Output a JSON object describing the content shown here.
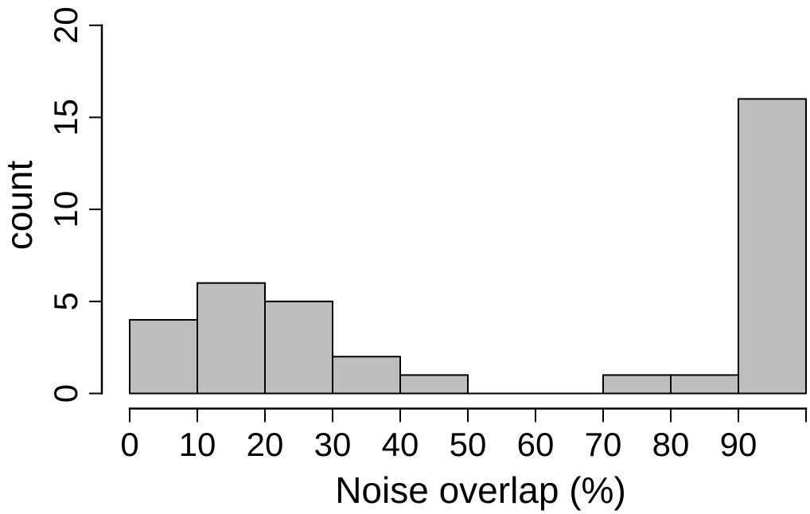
{
  "figure": {
    "background": "#FFFFFF"
  },
  "chart_data": {
    "type": "bar",
    "subtype": "histogram",
    "title": "",
    "xlabel": "Noise overlap (%)",
    "ylabel": "count",
    "bin_edges": [
      0,
      10,
      20,
      30,
      40,
      50,
      60,
      70,
      80,
      90,
      100
    ],
    "counts": [
      4,
      6,
      5,
      2,
      1,
      0,
      0,
      1,
      1,
      16
    ],
    "categories": [
      "0-10",
      "10-20",
      "20-30",
      "30-40",
      "40-50",
      "50-60",
      "60-70",
      "70-80",
      "80-90",
      "90-100"
    ],
    "xlim": [
      0,
      100
    ],
    "ylim": [
      0,
      20
    ],
    "x_ticks": [
      {
        "value": 0,
        "label": "0"
      },
      {
        "value": 10,
        "label": "10"
      },
      {
        "value": 20,
        "label": "20"
      },
      {
        "value": 30,
        "label": "30"
      },
      {
        "value": 40,
        "label": "40"
      },
      {
        "value": 50,
        "label": "50"
      },
      {
        "value": 60,
        "label": "60"
      },
      {
        "value": 70,
        "label": "70"
      },
      {
        "value": 80,
        "label": "80"
      },
      {
        "value": 90,
        "label": "90"
      },
      {
        "value": 100,
        "label": ""
      }
    ],
    "y_ticks": [
      {
        "value": 0,
        "label": "0"
      },
      {
        "value": 5,
        "label": "5"
      },
      {
        "value": 10,
        "label": "10"
      },
      {
        "value": 15,
        "label": "15"
      },
      {
        "value": 20,
        "label": "20"
      }
    ],
    "bar_fill": "#BEBEBE",
    "bar_border": "#000000",
    "axis_color": "#000000",
    "text_color": "#000000",
    "grid": "off",
    "legend": "none"
  }
}
